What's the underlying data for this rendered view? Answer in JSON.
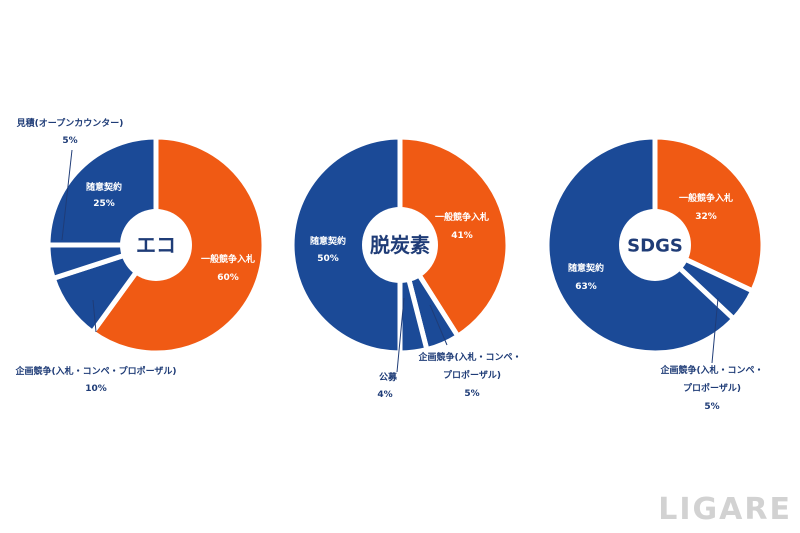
{
  "watermark": "LIGARE",
  "colors": {
    "blue": "#1b4a97",
    "orange": "#f05a14",
    "text": "#1f3c77",
    "leader": "#1f3c77"
  },
  "chart_data": [
    {
      "type": "pie",
      "title": "エコ",
      "series": [
        {
          "name": "一般競争入札",
          "value": 60,
          "label": "60%",
          "color": "#f05a14"
        },
        {
          "name": "企画競争(入札・コンペ・プロポーザル)",
          "value": 10,
          "label": "10%",
          "color": "#1b4a97"
        },
        {
          "name": "見積(オープンカウンター)",
          "value": 5,
          "label": "5%",
          "color": "#1b4a97"
        },
        {
          "name": "随意契約",
          "value": 25,
          "label": "25%",
          "color": "#1b4a97"
        }
      ]
    },
    {
      "type": "pie",
      "title": "脱炭素",
      "series": [
        {
          "name": "一般競争入札",
          "value": 41,
          "label": "41%",
          "color": "#f05a14"
        },
        {
          "name": "企画競争(入札・コンペ・プロポーザル)",
          "value": 5,
          "label": "5%",
          "color": "#1b4a97"
        },
        {
          "name": "公募",
          "value": 4,
          "label": "4%",
          "color": "#1b4a97"
        },
        {
          "name": "随意契約",
          "value": 50,
          "label": "50%",
          "color": "#1b4a97"
        }
      ]
    },
    {
      "type": "pie",
      "title": "SDGS",
      "series": [
        {
          "name": "一般競争入札",
          "value": 32,
          "label": "32%",
          "color": "#f05a14"
        },
        {
          "name": "企画競争(入札・コンペ・プロポーザル)",
          "value": 5,
          "label": "5%",
          "color": "#1b4a97"
        },
        {
          "name": "随意契約",
          "value": 63,
          "label": "63%",
          "color": "#1b4a97"
        }
      ]
    }
  ]
}
